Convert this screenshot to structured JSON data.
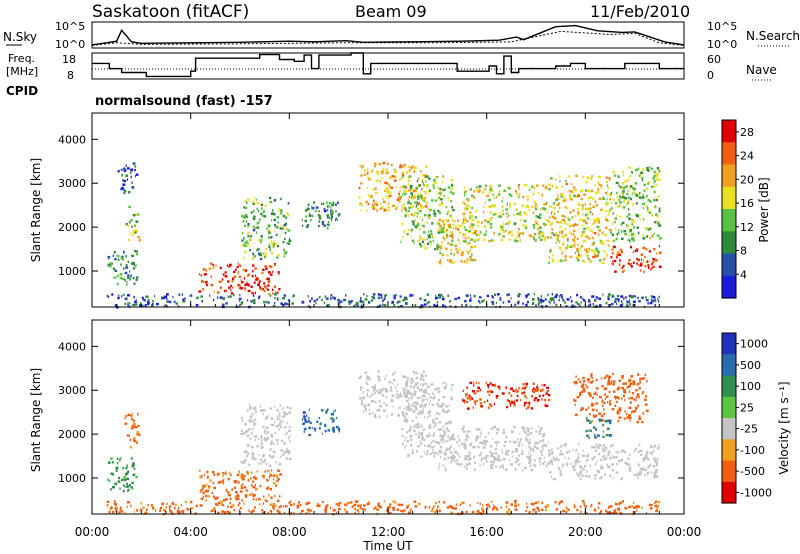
{
  "header": {
    "station": "Saskatoon (fitACF)",
    "beam": "Beam 09",
    "date": "11/Feb/2010"
  },
  "noise_panel": {
    "left_label": "N.Sky",
    "right_label": "N.Search",
    "left_ticks": [
      "10^5",
      "10^0"
    ],
    "right_ticks": [
      "10^5",
      "10^0"
    ]
  },
  "freq_panel": {
    "left_label_line1": "Freq.",
    "left_label_line2": "[MHz]",
    "right_label": "Nave",
    "left_ticks": [
      "18",
      "8"
    ],
    "right_ticks": [
      "60",
      "0"
    ]
  },
  "cpid": {
    "label": "CPID",
    "value": "normalsound (fast) -157"
  },
  "chart_data": [
    {
      "type": "line",
      "name": "noise",
      "x_range_hours": [
        0,
        24
      ],
      "sky_noise_log10": [
        [
          0,
          0.6
        ],
        [
          1,
          1.3
        ],
        [
          1.2,
          3.4
        ],
        [
          1.6,
          1.2
        ],
        [
          2,
          0.9
        ],
        [
          4,
          1.0
        ],
        [
          6,
          1.1
        ],
        [
          8,
          1.3
        ],
        [
          9,
          1.2
        ],
        [
          10.3,
          1.4
        ],
        [
          11,
          1.1
        ],
        [
          13,
          1.2
        ],
        [
          15,
          1.3
        ],
        [
          16.5,
          1.5
        ],
        [
          17.2,
          2.1
        ],
        [
          17.5,
          1.6
        ],
        [
          18.8,
          4.1
        ],
        [
          19.6,
          4.3
        ],
        [
          20.5,
          3.3
        ],
        [
          21.5,
          3.0
        ],
        [
          22,
          3.1
        ],
        [
          23.2,
          1.2
        ],
        [
          24,
          0.6
        ]
      ],
      "search_noise_log10": [
        [
          0,
          0.5
        ],
        [
          1,
          1.0
        ],
        [
          2,
          0.7
        ],
        [
          6,
          0.8
        ],
        [
          10,
          1.0
        ],
        [
          14,
          1.0
        ],
        [
          17,
          1.2
        ],
        [
          19,
          3.2
        ],
        [
          21,
          2.6
        ],
        [
          22,
          2.8
        ],
        [
          23,
          1.0
        ],
        [
          24,
          0.5
        ]
      ]
    },
    {
      "type": "line",
      "name": "frequency_nave",
      "freq_mhz_range": [
        8,
        18
      ],
      "nave_range": [
        0,
        60
      ],
      "freq_steps": [
        [
          0,
          14
        ],
        [
          0.7,
          12
        ],
        [
          1.2,
          10.5
        ],
        [
          2.2,
          9
        ],
        [
          4,
          11
        ],
        [
          4.2,
          16
        ],
        [
          6.8,
          17.4
        ],
        [
          7.6,
          15.5
        ],
        [
          8.2,
          14.8
        ],
        [
          8.6,
          17.2
        ],
        [
          8.9,
          12
        ],
        [
          9.2,
          17.2
        ],
        [
          10.5,
          18
        ],
        [
          11,
          10
        ],
        [
          11.3,
          14
        ],
        [
          14.8,
          11
        ],
        [
          15.5,
          11
        ],
        [
          16.1,
          13
        ],
        [
          16.4,
          10
        ],
        [
          16.7,
          16.8
        ],
        [
          17,
          10.5
        ],
        [
          17.3,
          12
        ],
        [
          18,
          12
        ],
        [
          18.8,
          13
        ],
        [
          19.4,
          14
        ],
        [
          20,
          12
        ],
        [
          21,
          12
        ],
        [
          21.6,
          14
        ],
        [
          23,
          12
        ],
        [
          24,
          12
        ]
      ],
      "nave_mean": 30
    },
    {
      "type": "heatmap",
      "name": "power",
      "title": "",
      "xlabel": "",
      "ylabel": "Slant Range [km]",
      "x_range_hours": [
        0,
        24
      ],
      "ylim_km": [
        180,
        4600
      ],
      "y_ticks": [
        "1000",
        "2000",
        "3000",
        "4000"
      ],
      "colorbar_label": "Power [dB]",
      "colorbar_ticks": [
        "4",
        "8",
        "12",
        "16",
        "20",
        "24",
        "28"
      ],
      "colorbar_range": [
        0,
        30
      ],
      "regions": [
        {
          "t0": 0.6,
          "t1": 1.8,
          "r0": 700,
          "r1": 1500,
          "value": 10
        },
        {
          "t0": 1.3,
          "t1": 1.9,
          "r0": 1700,
          "r1": 2500,
          "value": 14
        },
        {
          "t0": 1.0,
          "t1": 1.8,
          "r0": 2800,
          "r1": 3500,
          "value": 6
        },
        {
          "t0": 4.3,
          "t1": 7.6,
          "r0": 500,
          "r1": 1200,
          "value": 26
        },
        {
          "t0": 6.0,
          "t1": 8.0,
          "r0": 1300,
          "r1": 2700,
          "value": 12
        },
        {
          "t0": 8.5,
          "t1": 10.0,
          "r0": 2000,
          "r1": 2600,
          "value": 8
        },
        {
          "t0": 10.8,
          "t1": 13.5,
          "r0": 2400,
          "r1": 3500,
          "value": 20
        },
        {
          "t0": 12.5,
          "t1": 14.6,
          "r0": 1500,
          "r1": 3200,
          "value": 14
        },
        {
          "t0": 14.0,
          "t1": 15.5,
          "r0": 1200,
          "r1": 2200,
          "value": 18
        },
        {
          "t0": 15.0,
          "t1": 18.5,
          "r0": 1700,
          "r1": 3000,
          "value": 16
        },
        {
          "t0": 18.5,
          "t1": 21.0,
          "r0": 1200,
          "r1": 3200,
          "value": 18
        },
        {
          "t0": 21.0,
          "t1": 23.0,
          "r0": 1000,
          "r1": 1600,
          "value": 26
        },
        {
          "t0": 21.0,
          "t1": 23.0,
          "r0": 1700,
          "r1": 3400,
          "value": 14
        },
        {
          "t0": 0.5,
          "t1": 23.0,
          "r0": 200,
          "r1": 500,
          "value": 6
        }
      ]
    },
    {
      "type": "heatmap",
      "name": "velocity",
      "title": "",
      "xlabel": "Time UT",
      "ylabel": "Slant Range [km]",
      "x_range_hours": [
        0,
        24
      ],
      "ylim_km": [
        180,
        4600
      ],
      "y_ticks": [
        "1000",
        "2000",
        "3000",
        "4000"
      ],
      "x_ticks": [
        "00:00",
        "04:00",
        "08:00",
        "12:00",
        "16:00",
        "20:00",
        "00:00"
      ],
      "colorbar_label": "Velocity [m s⁻¹]",
      "colorbar_ticks": [
        "1000",
        "500",
        "100",
        "25",
        "-25",
        "-100",
        "-500",
        "-1000"
      ],
      "regions": [
        {
          "t0": 0.6,
          "t1": 1.8,
          "r0": 700,
          "r1": 1500,
          "value": 100
        },
        {
          "t0": 1.3,
          "t1": 1.9,
          "r0": 1700,
          "r1": 2500,
          "value": -100
        },
        {
          "t0": 4.3,
          "t1": 7.6,
          "r0": 500,
          "r1": 1200,
          "value": -100
        },
        {
          "t0": 6.0,
          "t1": 8.0,
          "r0": 1300,
          "r1": 2700,
          "value": 0
        },
        {
          "t0": 8.5,
          "t1": 10.0,
          "r0": 2000,
          "r1": 2600,
          "value": 500
        },
        {
          "t0": 10.8,
          "t1": 13.5,
          "r0": 2400,
          "r1": 3500,
          "value": 0
        },
        {
          "t0": 12.5,
          "t1": 14.6,
          "r0": 1500,
          "r1": 3200,
          "value": 0
        },
        {
          "t0": 14.0,
          "t1": 18.5,
          "r0": 1200,
          "r1": 2200,
          "value": 0
        },
        {
          "t0": 15.0,
          "t1": 18.5,
          "r0": 2600,
          "r1": 3200,
          "value": -300
        },
        {
          "t0": 18.5,
          "t1": 23.0,
          "r0": 1000,
          "r1": 1800,
          "value": 0
        },
        {
          "t0": 19.5,
          "t1": 22.5,
          "r0": 2300,
          "r1": 3400,
          "value": -200
        },
        {
          "t0": 20.0,
          "t1": 21.0,
          "r0": 1900,
          "r1": 2400,
          "value": 300
        },
        {
          "t0": 0.5,
          "t1": 23.0,
          "r0": 200,
          "r1": 500,
          "value": -100
        }
      ]
    }
  ],
  "colors": {
    "power_scale": [
      "#1a1ad9",
      "#2850a8",
      "#2e8a3a",
      "#58c043",
      "#e8e020",
      "#f0a020",
      "#f06010",
      "#e00000"
    ],
    "velocity_scale": [
      "#2233bb",
      "#2a6ab0",
      "#2f8f4f",
      "#5cc640",
      "#c4c4c4",
      "#f0a020",
      "#f06010",
      "#e00000"
    ]
  }
}
